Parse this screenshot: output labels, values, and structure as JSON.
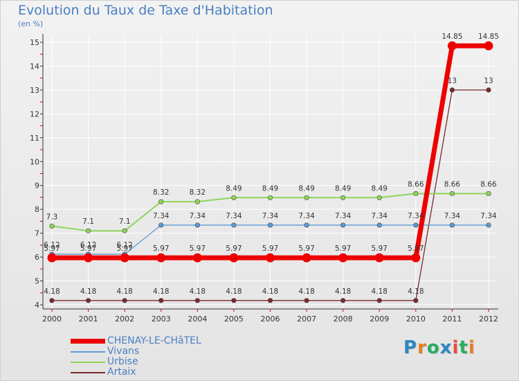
{
  "title": "Evolution du Taux de Taxe d'Habitation",
  "subtitle": "(en %)",
  "brand": {
    "text": "Proxiti",
    "letters": [
      {
        "ch": "P",
        "color": "#2e86c1"
      },
      {
        "ch": "r",
        "color": "#e67e22"
      },
      {
        "ch": "o",
        "color": "#27ae60"
      },
      {
        "ch": "x",
        "color": "#2e86c1"
      },
      {
        "ch": "i",
        "color": "#e74c3c"
      },
      {
        "ch": "t",
        "color": "#27ae60"
      },
      {
        "ch": "i",
        "color": "#e67e22"
      }
    ]
  },
  "chart_data": {
    "type": "line",
    "title": "Evolution du Taux de Taxe d'Habitation",
    "ylabel": "(en %)",
    "xlabel": "",
    "x": [
      "2000",
      "2001",
      "2002",
      "2003",
      "2004",
      "2005",
      "2006",
      "2007",
      "2008",
      "2009",
      "2010",
      "2011",
      "2012"
    ],
    "ylim": [
      4,
      15
    ],
    "yticks": [
      "4",
      "5",
      "6",
      "7",
      "8",
      "9",
      "10",
      "11",
      "12",
      "13",
      "14",
      "15"
    ],
    "grid": true,
    "series": [
      {
        "name": "CHENAY-LE-CHâTEL",
        "color": "#ee0000",
        "values": [
          5.97,
          5.97,
          5.97,
          5.97,
          5.97,
          5.97,
          5.97,
          5.97,
          5.97,
          5.97,
          5.97,
          14.85,
          14.85
        ],
        "labels": [
          "5.97",
          "5.97",
          "5.97",
          "5.97",
          "5.97",
          "5.97",
          "5.97",
          "5.97",
          "5.97",
          "5.97",
          "5.97",
          "14.85",
          "14.85"
        ]
      },
      {
        "name": "Vivans",
        "color": "#5b9bd5",
        "values": [
          6.12,
          6.12,
          6.12,
          7.34,
          7.34,
          7.34,
          7.34,
          7.34,
          7.34,
          7.34,
          7.34,
          7.34,
          7.34
        ],
        "labels": [
          "6.12",
          "6.12",
          "6.12",
          "7.34",
          "7.34",
          "7.34",
          "7.34",
          "7.34",
          "7.34",
          "7.34",
          "7.34",
          "7.34",
          "7.34"
        ]
      },
      {
        "name": "Urbise",
        "color": "#8fd45a",
        "values": [
          7.3,
          7.1,
          7.1,
          8.32,
          8.32,
          8.49,
          8.49,
          8.49,
          8.49,
          8.49,
          8.66,
          8.66,
          8.66
        ],
        "labels": [
          "7.3",
          "7.1",
          "7.1",
          "8.32",
          "8.32",
          "8.49",
          "8.49",
          "8.49",
          "8.49",
          "8.49",
          "8.66",
          "8.66",
          "8.66"
        ]
      },
      {
        "name": "Artaix",
        "color": "#7a2a2a",
        "values": [
          4.18,
          4.18,
          4.18,
          4.18,
          4.18,
          4.18,
          4.18,
          4.18,
          4.18,
          4.18,
          4.18,
          13,
          13
        ],
        "labels": [
          "4.18",
          "4.18",
          "4.18",
          "4.18",
          "4.18",
          "4.18",
          "4.18",
          "4.18",
          "4.18",
          "4.18",
          "4.18",
          "13",
          "13"
        ]
      }
    ],
    "legend_position": "bottom-left"
  }
}
